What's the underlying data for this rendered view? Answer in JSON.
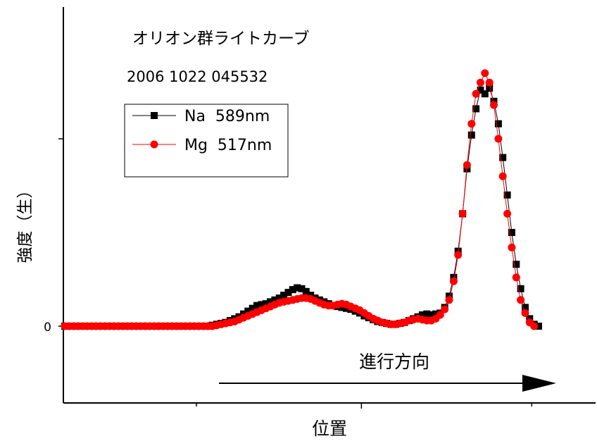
{
  "chart_data": {
    "type": "line",
    "title": "オリオン群ライトカーブ",
    "subtitle": "2006 1022 045532",
    "xlabel": "位置",
    "ylabel": "強度（生）",
    "xlim": [
      0,
      100
    ],
    "ylim": [
      -0.42,
      1.4
    ],
    "y_tick_labels": [
      "0"
    ],
    "x_ticks": [
      25,
      56,
      88
    ],
    "y_ticks": [
      0,
      1
    ],
    "legend": "top-left",
    "annotation": {
      "text": "進行方向"
    },
    "series": [
      {
        "name": "Na  589nm",
        "color": "#000000",
        "marker": "square",
        "points": [
          [
            0,
            0
          ],
          [
            1,
            0
          ],
          [
            2,
            0
          ],
          [
            3,
            0
          ],
          [
            4,
            0
          ],
          [
            5,
            0
          ],
          [
            6,
            0
          ],
          [
            7,
            0
          ],
          [
            8,
            0
          ],
          [
            9,
            0
          ],
          [
            10,
            0
          ],
          [
            11,
            0
          ],
          [
            12,
            0
          ],
          [
            13,
            0
          ],
          [
            14,
            0
          ],
          [
            15,
            0
          ],
          [
            16,
            0
          ],
          [
            17,
            0
          ],
          [
            18,
            0
          ],
          [
            19,
            0
          ],
          [
            20,
            0
          ],
          [
            21,
            0
          ],
          [
            22,
            0
          ],
          [
            23,
            0
          ],
          [
            24,
            0
          ],
          [
            25,
            0
          ],
          [
            26,
            0
          ],
          [
            27,
            0
          ],
          [
            28,
            0
          ],
          [
            29,
            0
          ],
          [
            30,
            0
          ],
          [
            31,
            0
          ],
          [
            32,
            0
          ],
          [
            33,
            0.005
          ],
          [
            34,
            0.01
          ],
          [
            35,
            0.015
          ],
          [
            36,
            0.02
          ],
          [
            37,
            0.03
          ],
          [
            38,
            0.04
          ],
          [
            39,
            0.05
          ],
          [
            40,
            0.065
          ],
          [
            41,
            0.08
          ],
          [
            42,
            0.095
          ],
          [
            43,
            0.11
          ],
          [
            44,
            0.115
          ],
          [
            45,
            0.12
          ],
          [
            46,
            0.13
          ],
          [
            47,
            0.14
          ],
          [
            48,
            0.15
          ],
          [
            49,
            0.165
          ],
          [
            50,
            0.18
          ],
          [
            51,
            0.195
          ],
          [
            52,
            0.205
          ],
          [
            53,
            0.2
          ],
          [
            54,
            0.185
          ],
          [
            55,
            0.165
          ],
          [
            56,
            0.15
          ],
          [
            57,
            0.14
          ],
          [
            58,
            0.13
          ],
          [
            59,
            0.12
          ],
          [
            60,
            0.11
          ],
          [
            61,
            0.105
          ],
          [
            62,
            0.1
          ],
          [
            63,
            0.095
          ],
          [
            64,
            0.09
          ],
          [
            65,
            0.08
          ],
          [
            66,
            0.07
          ],
          [
            67,
            0.055
          ],
          [
            68,
            0.045
          ],
          [
            69,
            0.035
          ],
          [
            70,
            0.025
          ],
          [
            71,
            0.02
          ],
          [
            72,
            0.015
          ],
          [
            73,
            0.01
          ],
          [
            74,
            0.01
          ],
          [
            75,
            0.015
          ],
          [
            76,
            0.02
          ],
          [
            77,
            0.03
          ],
          [
            78,
            0.04
          ],
          [
            79,
            0.05
          ],
          [
            80,
            0.06
          ],
          [
            81,
            0.065
          ],
          [
            82,
            0.06
          ],
          [
            83,
            0.065
          ],
          [
            84,
            0.07
          ],
          [
            85,
            0.1
          ],
          [
            86,
            0.16
          ],
          [
            87,
            0.26
          ],
          [
            88,
            0.4
          ],
          [
            89,
            0.6
          ],
          [
            90,
            0.84
          ],
          [
            91,
            1.02
          ],
          [
            92,
            1.16
          ],
          [
            93,
            1.26
          ],
          [
            94,
            1.24
          ],
          [
            95,
            1.27
          ],
          [
            96,
            1.2
          ],
          [
            97,
            1.08
          ],
          [
            98,
            0.9
          ],
          [
            99,
            0.7
          ],
          [
            100,
            0.5
          ],
          [
            101,
            0.33
          ],
          [
            102,
            0.2
          ],
          [
            103,
            0.1
          ],
          [
            104,
            0.04
          ],
          [
            105,
            0.01
          ],
          [
            106,
            0
          ]
        ]
      },
      {
        "name": "Mg  517nm",
        "color": "#ff0000",
        "marker": "circle",
        "points": [
          [
            0,
            0
          ],
          [
            1,
            0
          ],
          [
            2,
            0
          ],
          [
            3,
            0
          ],
          [
            4,
            0
          ],
          [
            5,
            0
          ],
          [
            6,
            0
          ],
          [
            7,
            0
          ],
          [
            8,
            0
          ],
          [
            9,
            0
          ],
          [
            10,
            0
          ],
          [
            11,
            0
          ],
          [
            12,
            0
          ],
          [
            13,
            0
          ],
          [
            14,
            0
          ],
          [
            15,
            0
          ],
          [
            16,
            0
          ],
          [
            17,
            0
          ],
          [
            18,
            0
          ],
          [
            19,
            0
          ],
          [
            20,
            0
          ],
          [
            21,
            0
          ],
          [
            22,
            0
          ],
          [
            23,
            0
          ],
          [
            24,
            0
          ],
          [
            25,
            0
          ],
          [
            26,
            0
          ],
          [
            27,
            0
          ],
          [
            28,
            0
          ],
          [
            29,
            0
          ],
          [
            30,
            0
          ],
          [
            31,
            0
          ],
          [
            32,
            0
          ],
          [
            33,
            0
          ],
          [
            34,
            0.005
          ],
          [
            35,
            0.01
          ],
          [
            36,
            0.015
          ],
          [
            37,
            0.02
          ],
          [
            38,
            0.025
          ],
          [
            39,
            0.035
          ],
          [
            40,
            0.045
          ],
          [
            41,
            0.055
          ],
          [
            42,
            0.065
          ],
          [
            43,
            0.075
          ],
          [
            44,
            0.085
          ],
          [
            45,
            0.095
          ],
          [
            46,
            0.105
          ],
          [
            47,
            0.115
          ],
          [
            48,
            0.125
          ],
          [
            49,
            0.13
          ],
          [
            50,
            0.135
          ],
          [
            51,
            0.14
          ],
          [
            52,
            0.145
          ],
          [
            53,
            0.15
          ],
          [
            54,
            0.15
          ],
          [
            55,
            0.145
          ],
          [
            56,
            0.135
          ],
          [
            57,
            0.125
          ],
          [
            58,
            0.115
          ],
          [
            59,
            0.11
          ],
          [
            60,
            0.11
          ],
          [
            61,
            0.115
          ],
          [
            62,
            0.12
          ],
          [
            63,
            0.115
          ],
          [
            64,
            0.105
          ],
          [
            65,
            0.095
          ],
          [
            66,
            0.085
          ],
          [
            67,
            0.07
          ],
          [
            68,
            0.055
          ],
          [
            69,
            0.04
          ],
          [
            70,
            0.03
          ],
          [
            71,
            0.02
          ],
          [
            72,
            0.015
          ],
          [
            73,
            0.01
          ],
          [
            74,
            0.01
          ],
          [
            75,
            0.015
          ],
          [
            76,
            0.02
          ],
          [
            77,
            0.03
          ],
          [
            78,
            0.035
          ],
          [
            79,
            0.04
          ],
          [
            80,
            0.035
          ],
          [
            81,
            0.03
          ],
          [
            82,
            0.03
          ],
          [
            83,
            0.04
          ],
          [
            84,
            0.06
          ],
          [
            85,
            0.09
          ],
          [
            86,
            0.14
          ],
          [
            87,
            0.24
          ],
          [
            88,
            0.38
          ],
          [
            89,
            0.6
          ],
          [
            90,
            0.86
          ],
          [
            91,
            1.08
          ],
          [
            92,
            1.24
          ],
          [
            93,
            1.3
          ],
          [
            94,
            1.35
          ],
          [
            95,
            1.3
          ],
          [
            96,
            1.18
          ],
          [
            97,
            1.0
          ],
          [
            98,
            0.8
          ],
          [
            99,
            0.6
          ],
          [
            100,
            0.42
          ],
          [
            101,
            0.26
          ],
          [
            102,
            0.14
          ],
          [
            103,
            0.07
          ],
          [
            104,
            0.02
          ],
          [
            105,
            0
          ]
        ]
      }
    ]
  }
}
